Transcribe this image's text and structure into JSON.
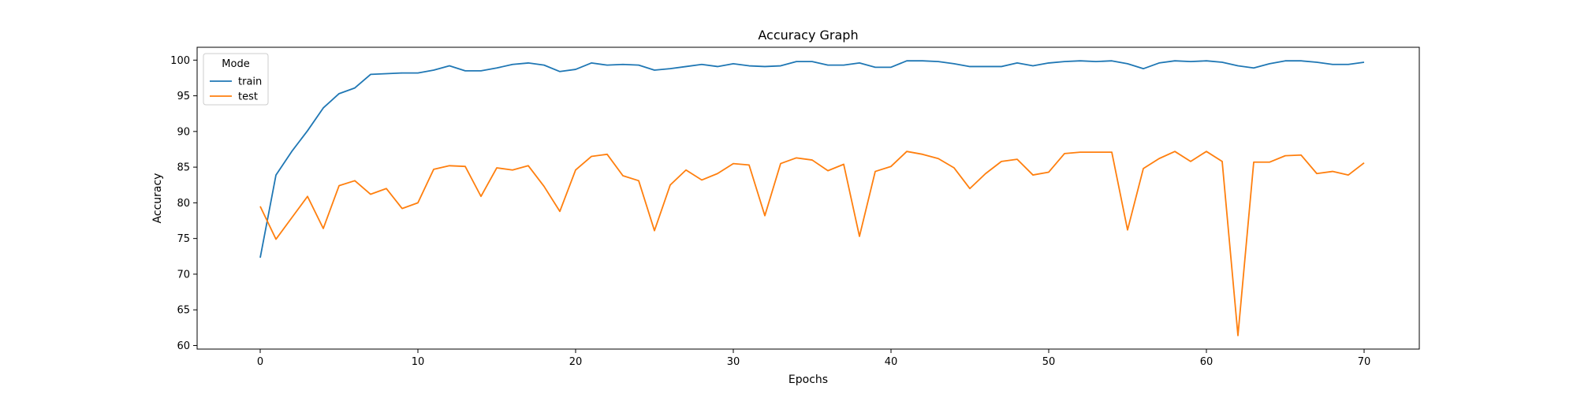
{
  "chart_data": {
    "type": "line",
    "title": "Accuracy Graph",
    "xlabel": "Epochs",
    "ylabel": "Accuracy",
    "xlim": [
      -4,
      73.5
    ],
    "ylim": [
      59.5,
      101.8
    ],
    "xticks": [
      "0",
      "10",
      "20",
      "30",
      "40",
      "50",
      "60",
      "70"
    ],
    "yticks": [
      "60",
      "65",
      "70",
      "75",
      "80",
      "85",
      "90",
      "95",
      "100"
    ],
    "grid": false,
    "legend": {
      "title": "Mode",
      "placement": "top-left"
    },
    "x": [
      0,
      1,
      2,
      3,
      4,
      5,
      6,
      7,
      8,
      9,
      10,
      11,
      12,
      13,
      14,
      15,
      16,
      17,
      18,
      19,
      20,
      21,
      22,
      23,
      24,
      25,
      26,
      27,
      28,
      29,
      30,
      31,
      32,
      33,
      34,
      35,
      36,
      37,
      38,
      39,
      40,
      41,
      42,
      43,
      44,
      45,
      46,
      47,
      48,
      49,
      50,
      51,
      52,
      53,
      54,
      55,
      56,
      57,
      58,
      59,
      60,
      61,
      62,
      63,
      64,
      65,
      66,
      67,
      68,
      69,
      70
    ],
    "series": [
      {
        "name": "train",
        "color": "#1f77b4",
        "values": [
          72.3,
          83.9,
          87.2,
          90.1,
          93.3,
          95.3,
          96.1,
          98.0,
          98.1,
          98.2,
          98.2,
          98.6,
          99.2,
          98.5,
          98.5,
          98.9,
          99.4,
          99.6,
          99.3,
          98.4,
          98.7,
          99.6,
          99.3,
          99.4,
          99.3,
          98.6,
          98.8,
          99.1,
          99.4,
          99.1,
          99.5,
          99.2,
          99.1,
          99.2,
          99.8,
          99.8,
          99.3,
          99.3,
          99.6,
          99.0,
          99.0,
          99.9,
          99.9,
          99.8,
          99.5,
          99.1,
          99.1,
          99.1,
          99.6,
          99.2,
          99.6,
          99.8,
          99.9,
          99.8,
          99.9,
          99.5,
          98.8,
          99.6,
          99.9,
          99.8,
          99.9,
          99.7,
          99.2,
          98.9,
          99.5,
          99.9,
          99.9,
          99.7,
          99.4,
          99.4,
          99.7
        ]
      },
      {
        "name": "test",
        "color": "#ff7f0e",
        "values": [
          79.5,
          74.9,
          77.9,
          80.9,
          76.4,
          82.4,
          83.1,
          81.2,
          82.0,
          79.2,
          80.0,
          84.7,
          85.2,
          85.1,
          80.9,
          84.9,
          84.6,
          85.2,
          82.3,
          78.8,
          84.6,
          86.5,
          86.8,
          83.8,
          83.1,
          76.1,
          82.5,
          84.6,
          83.2,
          84.1,
          85.5,
          85.3,
          78.2,
          85.5,
          86.3,
          86.0,
          84.5,
          85.4,
          75.3,
          84.4,
          85.1,
          87.2,
          86.8,
          86.2,
          84.9,
          82.0,
          84.1,
          85.8,
          86.1,
          83.9,
          84.3,
          86.9,
          87.1,
          87.1,
          87.1,
          76.2,
          84.8,
          86.2,
          87.2,
          85.8,
          87.2,
          85.8,
          61.4,
          85.7,
          85.7,
          86.6,
          86.7,
          84.1,
          84.4,
          83.9,
          85.6
        ]
      }
    ]
  }
}
